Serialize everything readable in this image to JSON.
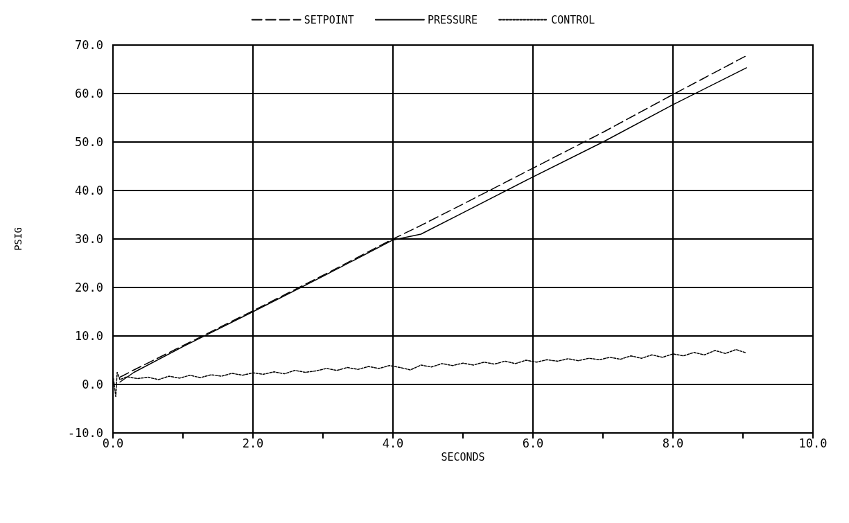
{
  "chart_data": {
    "type": "line",
    "xlabel": "SECONDS",
    "ylabel": "PSIG",
    "xlim": [
      0,
      10
    ],
    "ylim": [
      -10,
      70
    ],
    "xticks": [
      {
        "value": 0,
        "label": "0.0"
      },
      {
        "value": 1,
        "label": null
      },
      {
        "value": 2,
        "label": "2.0"
      },
      {
        "value": 3,
        "label": null
      },
      {
        "value": 4,
        "label": "4.0"
      },
      {
        "value": 5,
        "label": null
      },
      {
        "value": 6,
        "label": "6.0"
      },
      {
        "value": 7,
        "label": null
      },
      {
        "value": 8,
        "label": "8.0"
      },
      {
        "value": 9,
        "label": null
      },
      {
        "value": 10,
        "label": "10.0"
      }
    ],
    "yticks": [
      {
        "value": -10,
        "label": "-10.0"
      },
      {
        "value": 0,
        "label": "0.0"
      },
      {
        "value": 10,
        "label": "10.0"
      },
      {
        "value": 20,
        "label": "20.0"
      },
      {
        "value": 30,
        "label": "30.0"
      },
      {
        "value": 40,
        "label": "40.0"
      },
      {
        "value": 50,
        "label": "50.0"
      },
      {
        "value": 60,
        "label": "60.0"
      },
      {
        "value": 70,
        "label": "70.0"
      }
    ],
    "grid": true,
    "legend": "top",
    "marker": "none",
    "series": [
      {
        "name": "SETPOINT",
        "color": "#000000",
        "line_style": "dashed",
        "x": [
          0.1,
          0.3,
          1,
          2,
          3,
          4,
          4.4,
          5,
          6,
          7,
          8,
          9.05
        ],
        "values": [
          1.5,
          3,
          8,
          15.2,
          22.5,
          30,
          32.8,
          37.2,
          44.6,
          52,
          59.8,
          67.8
        ]
      },
      {
        "name": "PRESSURE",
        "color": "#000000",
        "line_style": "solid",
        "x": [
          0.1,
          0.3,
          1,
          2,
          3,
          4,
          4.4,
          5,
          6,
          7,
          8,
          9.05
        ],
        "values": [
          0.5,
          2.5,
          7.8,
          15,
          22.3,
          29.8,
          31,
          35.4,
          42.8,
          50,
          57.7,
          65.3
        ]
      },
      {
        "name": "CONTROL",
        "color": "#000000",
        "line_style": "dotted",
        "x": [
          0,
          0.04,
          0.06,
          0.1,
          0.2,
          0.35,
          0.5,
          0.65,
          0.8,
          0.95,
          1.1,
          1.25,
          1.4,
          1.55,
          1.7,
          1.85,
          2,
          2.15,
          2.3,
          2.45,
          2.6,
          2.75,
          2.9,
          3.05,
          3.2,
          3.35,
          3.5,
          3.65,
          3.8,
          3.95,
          4.1,
          4.25,
          4.4,
          4.55,
          4.7,
          4.85,
          5,
          5.15,
          5.3,
          5.45,
          5.6,
          5.75,
          5.9,
          6.05,
          6.2,
          6.35,
          6.5,
          6.65,
          6.8,
          6.95,
          7.1,
          7.25,
          7.4,
          7.55,
          7.7,
          7.85,
          8,
          8.15,
          8.3,
          8.45,
          8.6,
          8.75,
          8.9,
          9.05
        ],
        "values": [
          2,
          -2.5,
          2.5,
          1,
          1.6,
          1.2,
          1.5,
          1,
          1.7,
          1.3,
          1.9,
          1.4,
          2,
          1.7,
          2.3,
          1.9,
          2.4,
          2.1,
          2.6,
          2.2,
          2.9,
          2.5,
          2.8,
          3.3,
          2.9,
          3.5,
          3.1,
          3.7,
          3.3,
          3.9,
          3.5,
          3,
          4,
          3.6,
          4.3,
          3.9,
          4.4,
          4,
          4.6,
          4.2,
          4.8,
          4.3,
          5,
          4.6,
          5.1,
          4.8,
          5.3,
          4.9,
          5.4,
          5.1,
          5.6,
          5.2,
          5.9,
          5.4,
          6.1,
          5.6,
          6.3,
          5.9,
          6.6,
          6.1,
          7,
          6.4,
          7.2,
          6.5
        ]
      }
    ]
  }
}
